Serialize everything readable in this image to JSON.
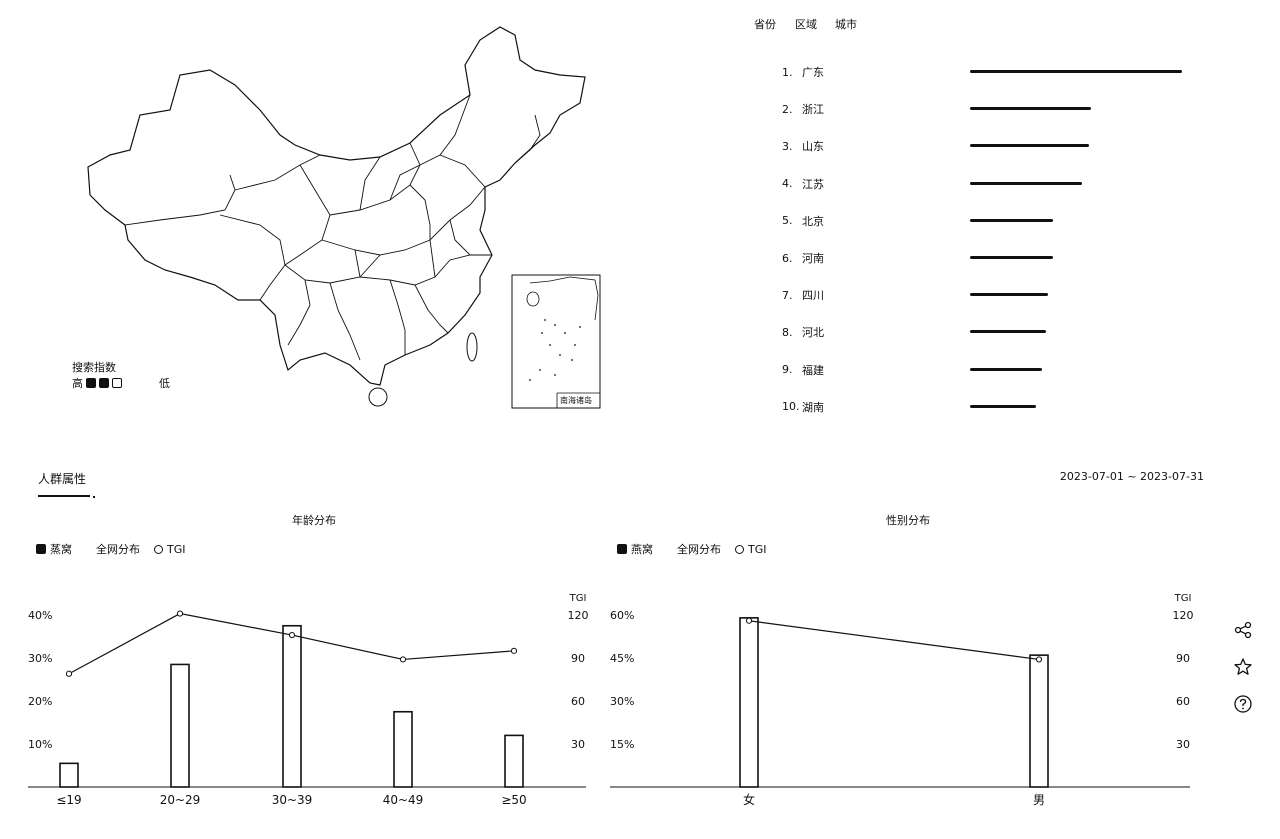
{
  "map": {
    "legend_title": "搜索指数",
    "legend_high": "高",
    "legend_low": "低",
    "inset_label": "南海诸岛"
  },
  "ranking": {
    "tabs": [
      "省份",
      "区域",
      "城市"
    ],
    "items": [
      {
        "rank": "1.",
        "name": "广东",
        "value": 100
      },
      {
        "rank": "2.",
        "name": "浙江",
        "value": 57
      },
      {
        "rank": "3.",
        "name": "山东",
        "value": 56
      },
      {
        "rank": "4.",
        "name": "江苏",
        "value": 53
      },
      {
        "rank": "5.",
        "name": "北京",
        "value": 39
      },
      {
        "rank": "6.",
        "name": "河南",
        "value": 39
      },
      {
        "rank": "7.",
        "name": "四川",
        "value": 37
      },
      {
        "rank": "8.",
        "name": "河北",
        "value": 36
      },
      {
        "rank": "9.",
        "name": "福建",
        "value": 34
      },
      {
        "rank": "10.",
        "name": "湖南",
        "value": 31
      }
    ]
  },
  "section": {
    "title": "人群属性",
    "date_range": "2023-07-01 ~ 2023-07-31"
  },
  "age_panel": {
    "title": "年龄分布",
    "legend_series": "蒸窝",
    "legend_all": "全网分布",
    "legend_tgi": "TGI"
  },
  "gender_panel": {
    "title": "性别分布",
    "legend_series": "燕窝",
    "legend_all": "全网分布",
    "legend_tgi": "TGI"
  },
  "chart_data": [
    {
      "type": "bar",
      "title": "年龄分布",
      "categories": [
        "≤19",
        "20~29",
        "30~39",
        "40~49",
        "≥50"
      ],
      "series": [
        {
          "name": "蒸窝",
          "type": "bar",
          "values": [
            5.5,
            28.5,
            37.5,
            17.5,
            12.0
          ]
        },
        {
          "name": "TGI",
          "type": "line",
          "axis": "right",
          "values": [
            79,
            121,
            106,
            89,
            95
          ]
        }
      ],
      "ylim": [
        0,
        40
      ],
      "yticks": [
        "10%",
        "20%",
        "30%",
        "40%"
      ],
      "y2label": "TGI",
      "y2lim": [
        0,
        120
      ],
      "y2ticks": [
        "30",
        "60",
        "90",
        "120"
      ]
    },
    {
      "type": "bar",
      "title": "性别分布",
      "categories": [
        "女",
        "男"
      ],
      "series": [
        {
          "name": "燕窝",
          "type": "bar",
          "values": [
            59,
            46
          ]
        },
        {
          "name": "TGI",
          "type": "line",
          "axis": "right",
          "values": [
            116,
            89
          ]
        }
      ],
      "ylim": [
        0,
        60
      ],
      "yticks": [
        "15%",
        "30%",
        "45%",
        "60%"
      ],
      "y2label": "TGI",
      "y2lim": [
        0,
        120
      ],
      "y2ticks": [
        "30",
        "60",
        "90",
        "120"
      ]
    }
  ],
  "icons": [
    "share-icon",
    "star-icon",
    "help-icon"
  ]
}
